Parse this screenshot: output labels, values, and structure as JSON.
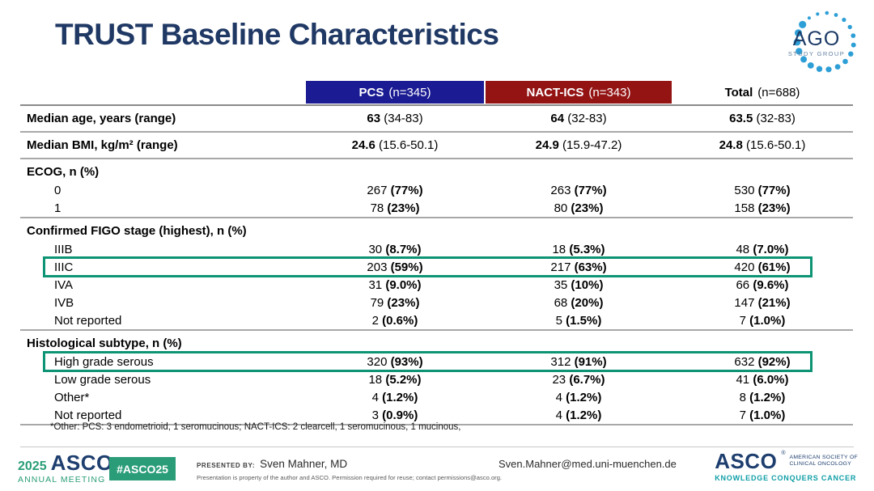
{
  "slide": {
    "title": "TRUST Baseline Characteristics"
  },
  "ago_logo": {
    "text": "AGO",
    "subtitle": "STUDY GROUP",
    "dot_color": "#2e9fd6",
    "text_color": "#1d3a66"
  },
  "table": {
    "columns": [
      {
        "name": "PCS",
        "n": "(n=345)",
        "bg": "#1b1b93",
        "text_color": "#ffffff"
      },
      {
        "name": "NACT-ICS",
        "n": "(n=343)",
        "bg": "#941414",
        "text_color": "#ffffff"
      },
      {
        "name": "Total",
        "n": "(n=688)",
        "bg": "transparent",
        "text_color": "#000000"
      }
    ],
    "highlight_color": "#0d9474",
    "rows": [
      {
        "type": "data",
        "size": "tall",
        "indent": false,
        "emphasis": "main",
        "sep_after": true,
        "highlight": false,
        "label": "Median age, years (range)",
        "cells": [
          {
            "main": "63",
            "paren": "(34-83)"
          },
          {
            "main": "64",
            "paren": "(32-83)"
          },
          {
            "main": "63.5",
            "paren": "(32-83)"
          }
        ]
      },
      {
        "type": "data",
        "size": "tall",
        "indent": false,
        "emphasis": "main",
        "sep_after": true,
        "highlight": false,
        "label": "Median BMI, kg/m² (range)",
        "cells": [
          {
            "main": "24.6",
            "paren": "(15.6-50.1)"
          },
          {
            "main": "24.9",
            "paren": "(15.9-47.2)"
          },
          {
            "main": "24.8",
            "paren": "(15.6-50.1)"
          }
        ]
      },
      {
        "type": "section",
        "indent": false,
        "emphasis": "paren",
        "sep_after": false,
        "highlight": false,
        "label": "ECOG, n (%)",
        "cells": []
      },
      {
        "type": "data",
        "indent": true,
        "emphasis": "paren",
        "sep_after": false,
        "highlight": false,
        "label": "0",
        "cells": [
          {
            "main": "267",
            "paren": "(77%)"
          },
          {
            "main": "263",
            "paren": "(77%)"
          },
          {
            "main": "530",
            "paren": "(77%)"
          }
        ]
      },
      {
        "type": "data",
        "indent": true,
        "emphasis": "paren",
        "sep_after": true,
        "highlight": false,
        "label": "1",
        "cells": [
          {
            "main": "78",
            "paren": "(23%)"
          },
          {
            "main": "80",
            "paren": "(23%)"
          },
          {
            "main": "158",
            "paren": "(23%)"
          }
        ]
      },
      {
        "type": "section",
        "indent": false,
        "emphasis": "paren",
        "sep_after": false,
        "highlight": false,
        "label": "Confirmed FIGO stage (highest), n (%)",
        "cells": []
      },
      {
        "type": "data",
        "indent": true,
        "emphasis": "paren",
        "sep_after": false,
        "highlight": false,
        "label": "IIIB",
        "cells": [
          {
            "main": "30",
            "paren": "(8.7%)"
          },
          {
            "main": "18",
            "paren": "(5.3%)"
          },
          {
            "main": "48",
            "paren": "(7.0%)"
          }
        ]
      },
      {
        "type": "data",
        "indent": true,
        "emphasis": "paren",
        "sep_after": false,
        "highlight": true,
        "label": "IIIC",
        "cells": [
          {
            "main": "203",
            "paren": "(59%)"
          },
          {
            "main": "217",
            "paren": "(63%)"
          },
          {
            "main": "420",
            "paren": "(61%)"
          }
        ]
      },
      {
        "type": "data",
        "indent": true,
        "emphasis": "paren",
        "sep_after": false,
        "highlight": false,
        "label": "IVA",
        "cells": [
          {
            "main": "31",
            "paren": "(9.0%)"
          },
          {
            "main": "35",
            "paren": "(10%)"
          },
          {
            "main": "66",
            "paren": "(9.6%)"
          }
        ]
      },
      {
        "type": "data",
        "indent": true,
        "emphasis": "paren",
        "sep_after": false,
        "highlight": false,
        "label": "IVB",
        "cells": [
          {
            "main": "79",
            "paren": "(23%)"
          },
          {
            "main": "68",
            "paren": "(20%)"
          },
          {
            "main": "147",
            "paren": "(21%)"
          }
        ]
      },
      {
        "type": "data",
        "indent": true,
        "emphasis": "paren",
        "sep_after": true,
        "highlight": false,
        "label": "Not reported",
        "cells": [
          {
            "main": "2",
            "paren": "(0.6%)"
          },
          {
            "main": "5",
            "paren": "(1.5%)"
          },
          {
            "main": "7",
            "paren": "(1.0%)"
          }
        ]
      },
      {
        "type": "section",
        "indent": false,
        "emphasis": "paren",
        "sep_after": false,
        "highlight": false,
        "label": "Histological subtype, n (%)",
        "cells": []
      },
      {
        "type": "data",
        "indent": true,
        "emphasis": "paren",
        "sep_after": false,
        "highlight": true,
        "label": "High grade serous",
        "cells": [
          {
            "main": "320",
            "paren": "(93%)"
          },
          {
            "main": "312",
            "paren": "(91%)"
          },
          {
            "main": "632",
            "paren": "(92%)"
          }
        ]
      },
      {
        "type": "data",
        "indent": true,
        "emphasis": "paren",
        "sep_after": false,
        "highlight": false,
        "label": "Low grade serous",
        "cells": [
          {
            "main": "18",
            "paren": "(5.2%)"
          },
          {
            "main": "23",
            "paren": "(6.7%)"
          },
          {
            "main": "41",
            "paren": "(6.0%)"
          }
        ]
      },
      {
        "type": "data",
        "indent": true,
        "emphasis": "paren",
        "sep_after": false,
        "highlight": false,
        "label": "Other*",
        "cells": [
          {
            "main": "4",
            "paren": "(1.2%)"
          },
          {
            "main": "4",
            "paren": "(1.2%)"
          },
          {
            "main": "8",
            "paren": "(1.2%)"
          }
        ]
      },
      {
        "type": "data",
        "indent": true,
        "emphasis": "paren",
        "sep_after": true,
        "highlight": false,
        "label": "Not reported",
        "cells": [
          {
            "main": "3",
            "paren": "(0.9%)"
          },
          {
            "main": "4",
            "paren": "(1.2%)"
          },
          {
            "main": "7",
            "paren": "(1.0%)"
          }
        ]
      }
    ],
    "footnote": "*Other: PCS: 3 endometrioid, 1 seromucinous; NACT-ICS: 2 clearcell, 1 seromucinous, 1 mucinous,"
  },
  "footer": {
    "meeting": {
      "year": "2025",
      "asco": "ASCO",
      "reg": "®",
      "annual": "ANNUAL MEETING"
    },
    "hashtag": "#ASCO25",
    "hashtag_bg": "#2a9d78",
    "presented_by_label": "PRESENTED BY:",
    "presenter": "Sven Mahner, MD",
    "disclaimer": "Presentation is property of the author and ASCO. Permission required for reuse; contact permissions@asco.org.",
    "email": "Sven.Mahner@med.uni-muenchen.de",
    "asco_logo": {
      "name": "ASCO",
      "reg": "®",
      "society_line1": "AMERICAN SOCIETY OF",
      "society_line2": "CLINICAL ONCOLOGY",
      "tagline": "KNOWLEDGE CONQUERS CANCER"
    },
    "green": "#2a9d78",
    "navy": "#1d3e6e",
    "teal": "#0f9ea6"
  }
}
